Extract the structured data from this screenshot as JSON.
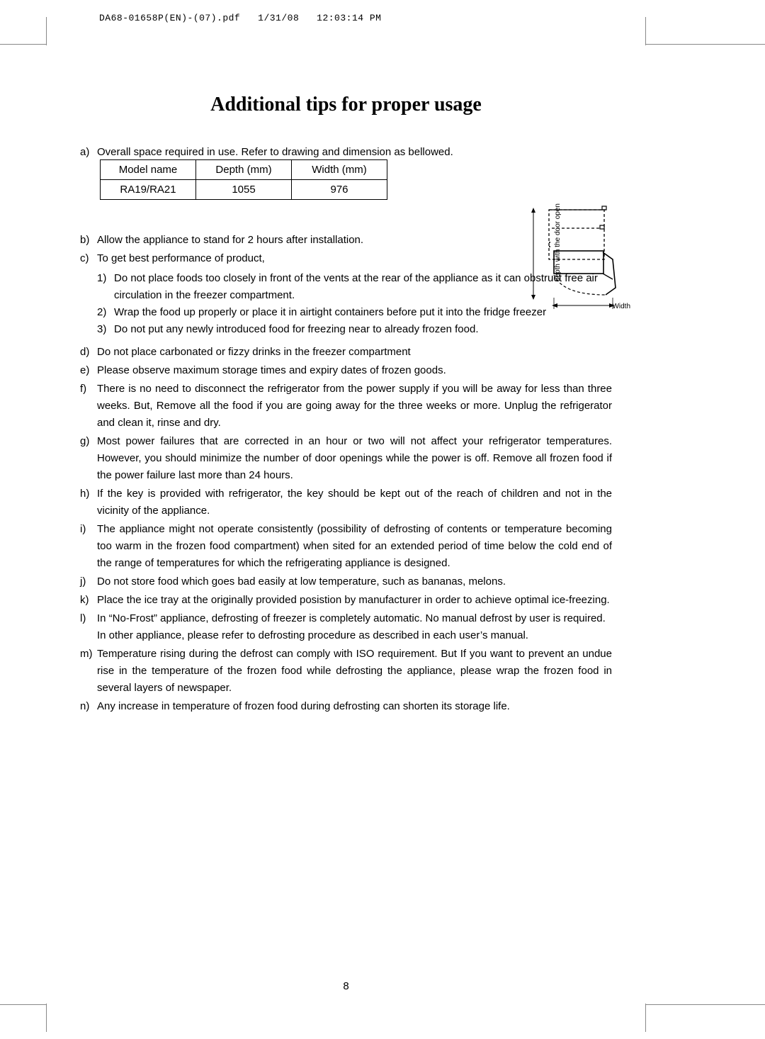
{
  "header": {
    "filename": "DA68-01658P(EN)-(07).pdf",
    "date": "1/31/08",
    "time": "12:03:14 PM"
  },
  "title": "Additional tips for proper usage",
  "intro": "Overall space required in use. Refer to drawing and dimension as bellowed.",
  "intro_label": "a)",
  "dim_table": {
    "columns": [
      "Model name",
      "Depth (mm)",
      "Width (mm)"
    ],
    "rows": [
      [
        "RA19/RA21",
        "1055",
        "976"
      ]
    ]
  },
  "diagram": {
    "depth_label": "depth with the door open",
    "width_label": "Width",
    "stroke": "#000000",
    "dash": "3,3"
  },
  "items": [
    {
      "label": "b)",
      "text": "Allow the appliance to stand for 2 hours after installation."
    },
    {
      "label": "c)",
      "text": "To get best  performance of product,",
      "sub": [
        {
          "label": "1)",
          "text": "Do not place foods too closely in front of the vents at the rear of the appliance as it can obstruct free air circulation in the freezer compartment."
        },
        {
          "label": "2)",
          "text": "Wrap the food up properly or place it in airtight containers before put it into the fridge freezer"
        },
        {
          "label": "3)",
          "text": "Do not put any newly introduced food for freezing near to already frozen food."
        }
      ]
    },
    {
      "label": "d)",
      "text": "Do not place carbonated or fizzy drinks in the freezer compartment"
    },
    {
      "label": "e)",
      "text": "Please observe maximum storage times and expiry dates of frozen goods."
    },
    {
      "label": "f)",
      "text": "There is no need to disconnect the refrigerator from the power supply if you will be away for less than three weeks. But, Remove all the food if you are going away for the three weeks or more. Unplug the refrigerator and clean it, rinse and dry."
    },
    {
      "label": "g)",
      "text": "Most power failures that are corrected in an hour or two will not affect your refrigerator temperatures. However, you should minimize the number of door openings while the power is off. Remove all frozen food if the power failure last more than 24 hours."
    },
    {
      "label": "h)",
      "text": "If the key is provided with refrigerator, the key should be kept out of the reach of children and not in the vicinity of the appliance."
    },
    {
      "label": "i)",
      "text": "The appliance might not operate consistently (possibility of defrosting of contents or temperature becoming too warm in the frozen food compartment) when sited for an extended period of time below the cold end of the range of temperatures for which the refrigerating appliance is designed."
    },
    {
      "label": "j)",
      "text": "Do not store food which goes bad easily at low temperature, such as bananas, melons."
    },
    {
      "label": "k)",
      "text": "Place the ice tray at the originally provided posistion by manufacturer in order to achieve optimal ice-freezing."
    },
    {
      "label": "l)",
      "text": "In “No-Frost” appliance, defrosting of freezer is completely automatic. No manual defrost by user is required.\nIn other appliance, please refer to defrosting procedure as described in each user’s manual."
    },
    {
      "label": "m)",
      "text": "Temperature rising during the defrost can comply with ISO requirement. But If you want to prevent an undue rise in the temperature of the frozen food while defrosting the appliance, please wrap the frozen food in several layers of newspaper."
    },
    {
      "label": "n)",
      "text": "Any increase in temperature of frozen food during defrosting can shorten its storage life."
    }
  ],
  "page_number": "8"
}
